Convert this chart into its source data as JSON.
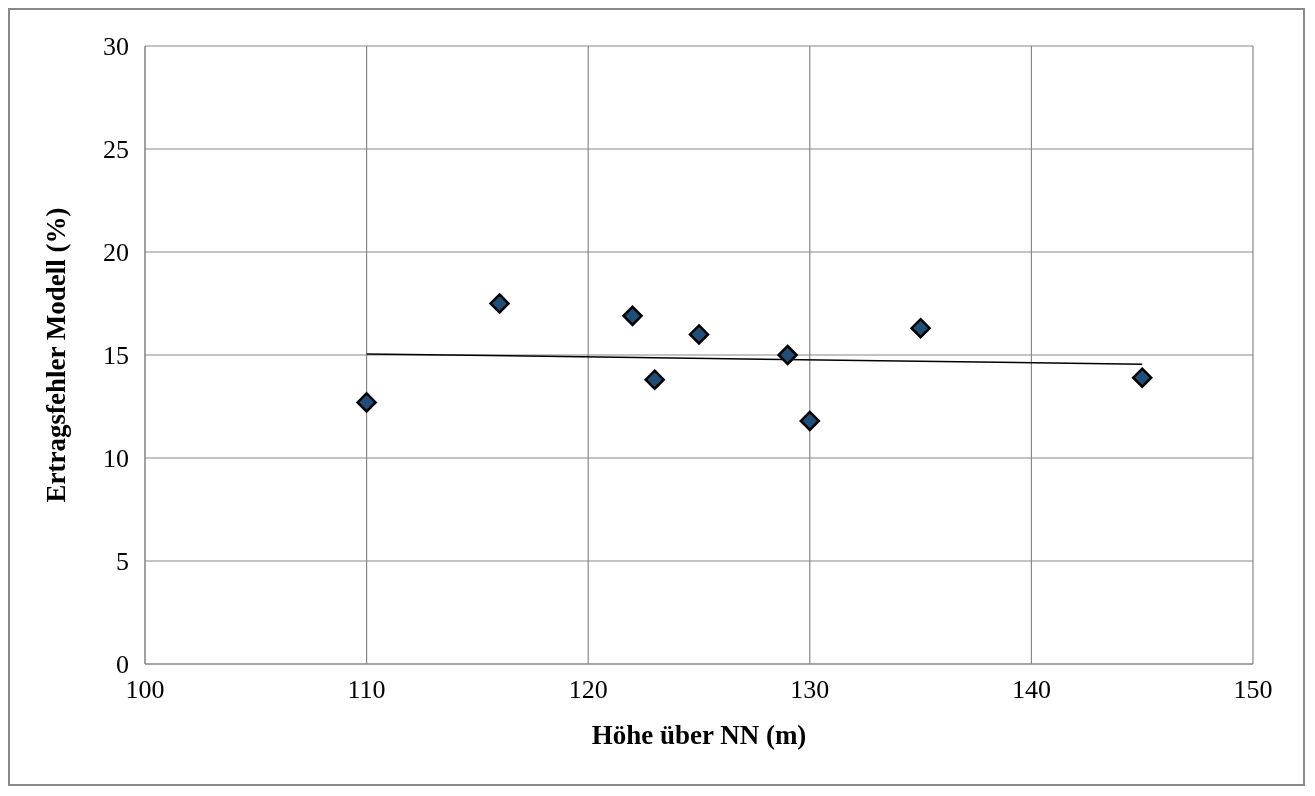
{
  "chart_data": {
    "type": "scatter",
    "xlabel": "Höhe über NN (m)",
    "ylabel": "Ertragsfehler  Modell (%)",
    "xlim": [
      100,
      150
    ],
    "xticks": [
      100,
      110,
      120,
      130,
      140,
      150
    ],
    "ylim": [
      0,
      30
    ],
    "yticks": [
      0,
      5,
      10,
      15,
      20,
      25,
      30
    ],
    "grid": true,
    "marker": "diamond",
    "series": [
      {
        "type": "scatter",
        "color": "#1f4e79",
        "x": [
          110,
          116,
          122,
          123,
          125,
          129,
          130,
          135,
          145
        ],
        "values": [
          12.7,
          17.5,
          16.9,
          13.8,
          16.0,
          15.0,
          11.8,
          16.3,
          13.9
        ]
      },
      {
        "type": "line",
        "color": "#000000",
        "x": [
          110,
          145
        ],
        "values": [
          15.05,
          14.55
        ],
        "marker": "none",
        "line_style": "solid"
      }
    ]
  }
}
